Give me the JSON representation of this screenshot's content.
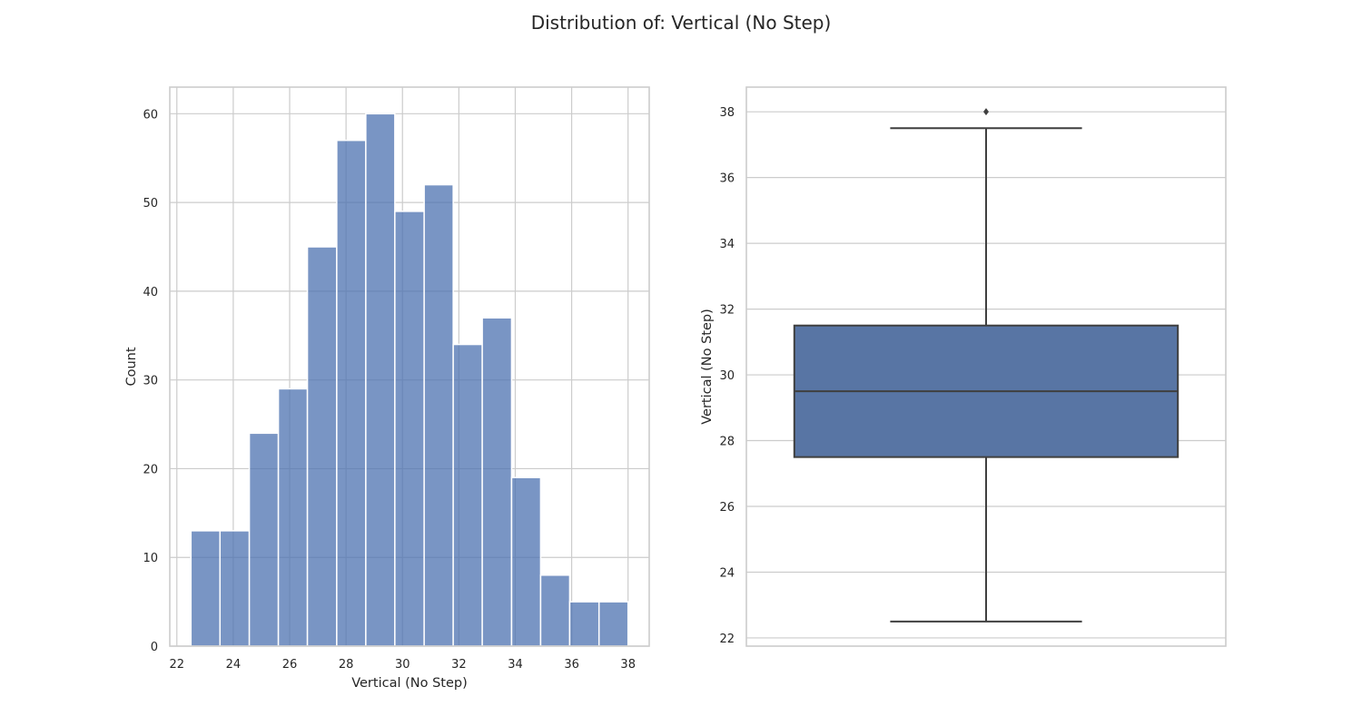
{
  "figure": {
    "suptitle": "Distribution of: Vertical (No Step)",
    "colors": {
      "bar": "#4c72b0",
      "box": "#5875a4",
      "line": "#3f3f3f",
      "grid": "#cccccc",
      "background": "#ffffff"
    }
  },
  "chart_data": [
    {
      "type": "bar",
      "subtype": "histogram",
      "title": "",
      "xlabel": "Vertical (No Step)",
      "ylabel": "Count",
      "xlim": [
        21.75,
        38.75
      ],
      "ylim": [
        0,
        63
      ],
      "xticks": [
        22,
        24,
        26,
        28,
        30,
        32,
        34,
        36,
        38
      ],
      "yticks": [
        0,
        10,
        20,
        30,
        40,
        50,
        60
      ],
      "grid": true,
      "bin_edges": [
        22.5,
        23.53,
        24.57,
        25.6,
        26.63,
        27.67,
        28.7,
        29.73,
        30.77,
        31.8,
        32.83,
        33.87,
        34.9,
        35.93,
        36.97,
        38.0
      ],
      "values": [
        13,
        13,
        24,
        29,
        45,
        57,
        60,
        49,
        52,
        34,
        37,
        19,
        8,
        5,
        5
      ]
    },
    {
      "type": "box",
      "title": "",
      "xlabel": "",
      "ylabel": "Vertical (No Step)",
      "ylim": [
        21.75,
        38.75
      ],
      "yticks": [
        22,
        24,
        26,
        28,
        30,
        32,
        34,
        36,
        38
      ],
      "grid": true,
      "whisker_low": 22.5,
      "q1": 27.5,
      "median": 29.5,
      "q3": 31.5,
      "whisker_high": 37.5,
      "outliers": [
        38.0
      ]
    }
  ]
}
